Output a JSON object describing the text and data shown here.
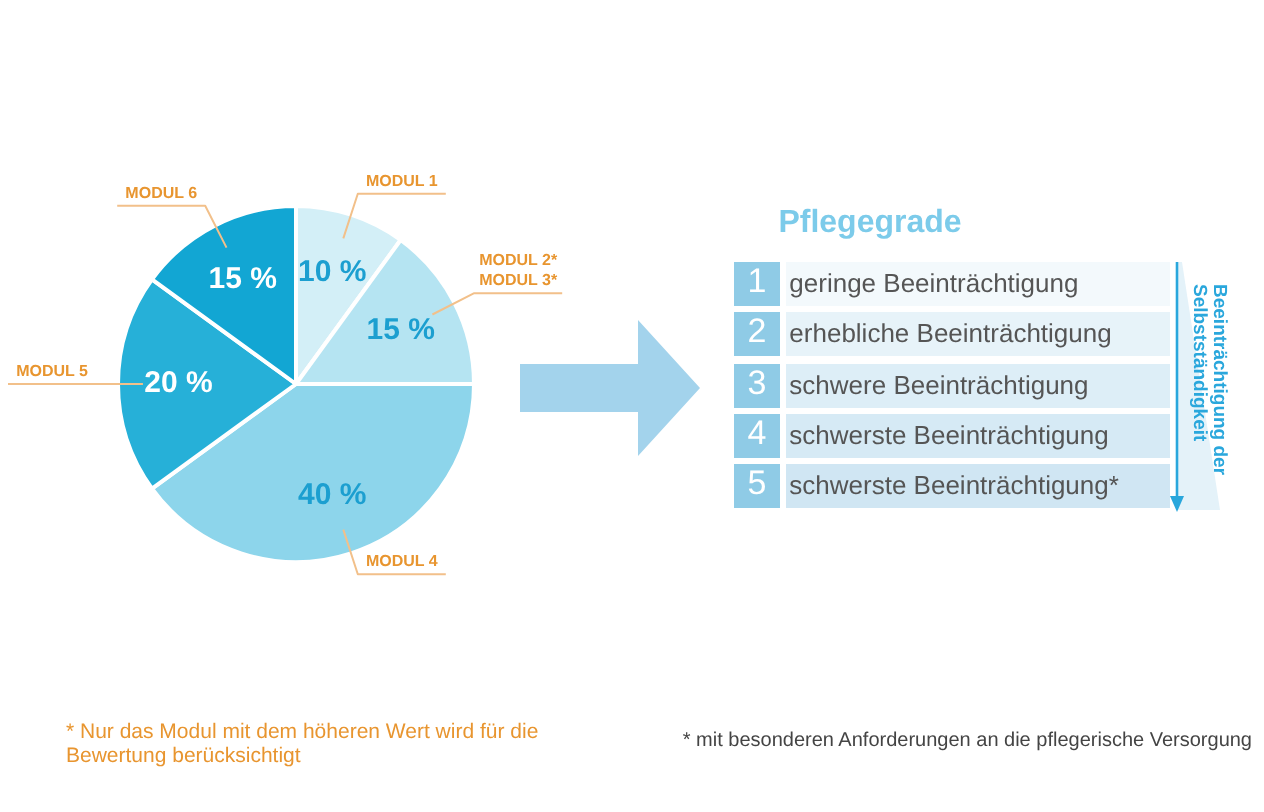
{
  "chart_data": [
    {
      "type": "pie",
      "categories": [
        "MODUL 1",
        "MODUL 2*\nMODUL 3*",
        "MODUL 4",
        "MODUL 5",
        "MODUL 6"
      ],
      "values": [
        10,
        15,
        40,
        20,
        15
      ],
      "colors": [
        "#d3eff7",
        "#b5e4f2",
        "#8dd5eb",
        "#26b0d8",
        "#12a6d3"
      ],
      "value_labels": [
        "10 %",
        "15 %",
        "40 %",
        "20 %",
        "15 %"
      ],
      "annotations": [
        "* Nur das Modul mit dem höheren Wert wird für die Bewertung berücksichtigt"
      ]
    },
    {
      "type": "other",
      "title": "Pflegegrade",
      "categories": [
        "1 geringe Beeinträchtigung",
        "2 erhebliche Beeinträchtigung",
        "3 schwere Beeinträchtigung",
        "4 schwerste Beeinträchtigung",
        "5 schwerste Beeinträchtigung*"
      ],
      "annotations": [
        "Beeinträchtigung der Selbstständigkeit",
        "* mit besonderen Anforderungen an die pflegerische Versorgung"
      ]
    }
  ]
}
